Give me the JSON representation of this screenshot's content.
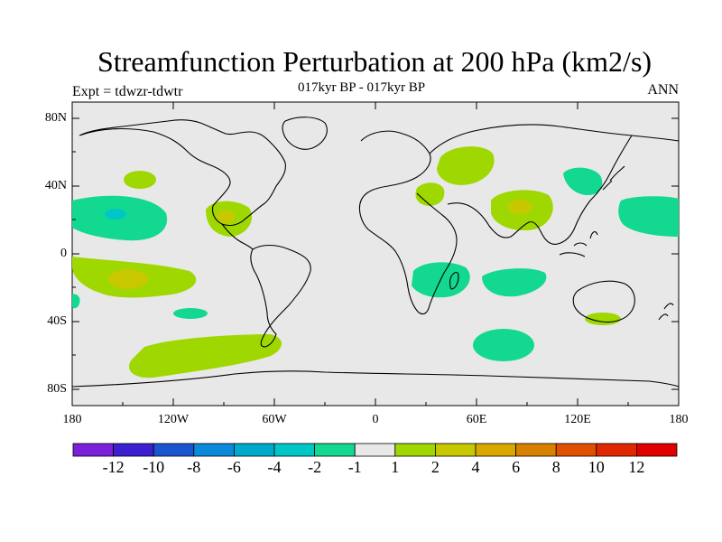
{
  "title": "Streamfunction Perturbation at 200 hPa (km2/s)",
  "subtitle": "017kyr BP - 017kyr BP",
  "experiment": "Expt = tdwzr-tdwtr",
  "season": "ANN",
  "map": {
    "background_color": "#e8e8e8",
    "coastline_color": "#000000",
    "lat_ticks": [
      "80N",
      "40N",
      "0",
      "40S",
      "80S"
    ],
    "lon_ticks": [
      "180",
      "120W",
      "60W",
      "0",
      "60E",
      "120E",
      "180"
    ]
  },
  "colorbar": {
    "colors": [
      "#7a20d8",
      "#3b1fd0",
      "#1a55d0",
      "#0a8ad8",
      "#00aacc",
      "#00c6c6",
      "#12d890",
      "#e8e8e8",
      "#9fd800",
      "#c8c800",
      "#d8a800",
      "#d88000",
      "#e05000",
      "#e02800",
      "#e00000"
    ],
    "labels": [
      "-12",
      "-10",
      "-8",
      "-6",
      "-4",
      "-2",
      "-1",
      "1",
      "2",
      "4",
      "6",
      "8",
      "10",
      "12"
    ]
  }
}
